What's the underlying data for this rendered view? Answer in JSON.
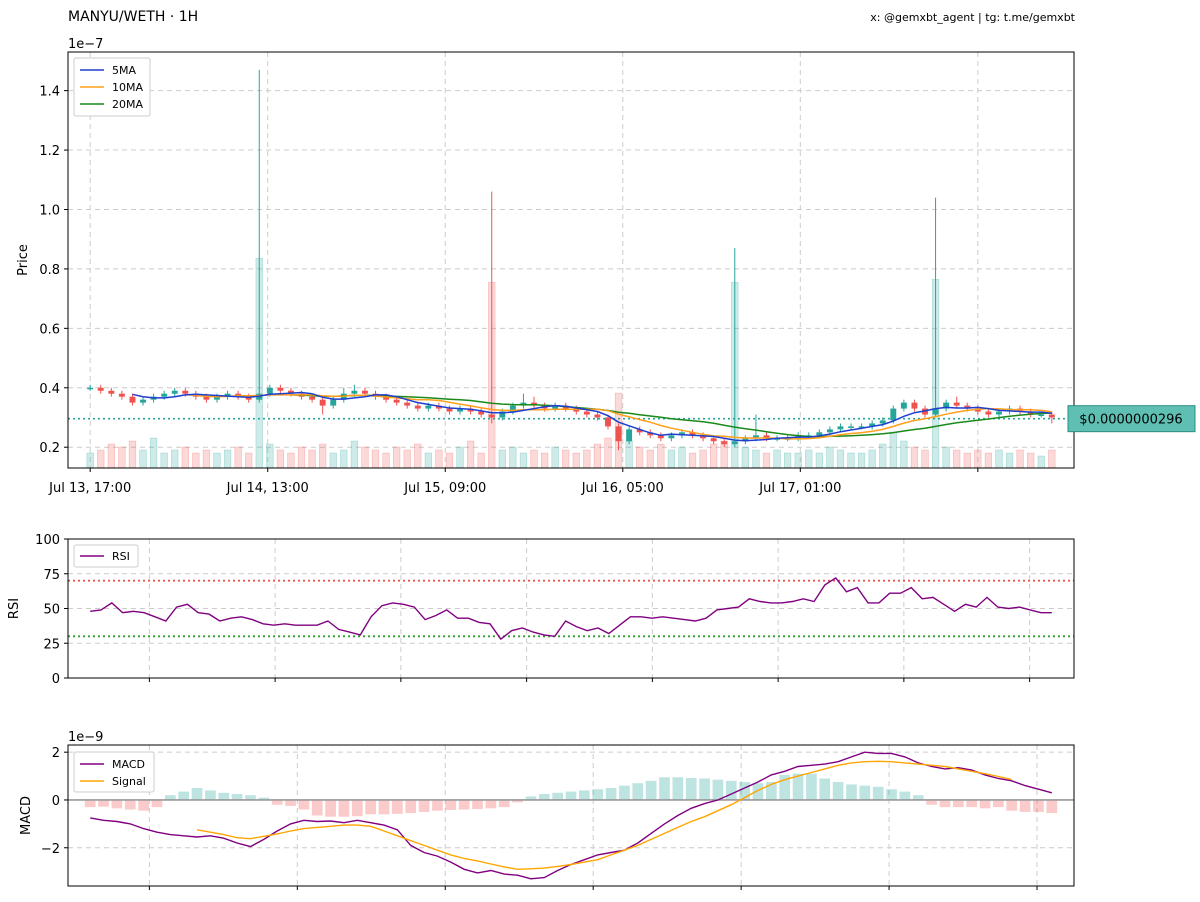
{
  "header": {
    "title": "MANYU/WETH · 1H",
    "credit": "x: @gemxbt_agent | tg: t.me/gemxbt"
  },
  "colors": {
    "up": "#26a69a",
    "down": "#ef5350",
    "ma5": "#1f3fd1",
    "ma10": "#ff9f1a",
    "ma20": "#1a8a1a",
    "rsi": "#800080",
    "overbought": "#ef5350",
    "oversold": "#2ca02c",
    "macd": "#800080",
    "signal": "#ffa500",
    "price_line": "#26a69a"
  },
  "chart_data": [
    {
      "type": "candlestick",
      "panel": "price",
      "ylabel": "Price",
      "y_exponent_label": "1e−7",
      "y_scale": 1e-07,
      "ylim": [
        0.13,
        1.53
      ],
      "yticks": [
        0.2,
        0.4,
        0.6,
        0.8,
        1.0,
        1.2,
        1.4
      ],
      "ytick_labels": [
        "0.2",
        "0.4",
        "0.6",
        "0.8",
        "1.0",
        "1.2",
        "1.4"
      ],
      "xlim": [
        -3,
        133
      ],
      "xticks": [
        0,
        24,
        48,
        72,
        96,
        120
      ],
      "xtick_labels": [
        "Jul 13, 17:00",
        "Jul 14, 13:00",
        "Jul 15, 09:00",
        "Jul 16, 05:00",
        "Jul 17, 01:00",
        ""
      ],
      "grid": true,
      "legend_position": "top-left",
      "legend": [
        "5MA",
        "10MA",
        "20MA"
      ],
      "current_price": 0.296,
      "current_price_label": "$0.0000000296",
      "ohlc": [
        [
          0.4,
          0.41,
          0.39,
          0.4
        ],
        [
          0.4,
          0.41,
          0.38,
          0.39
        ],
        [
          0.39,
          0.4,
          0.37,
          0.38
        ],
        [
          0.38,
          0.39,
          0.36,
          0.37
        ],
        [
          0.37,
          0.38,
          0.34,
          0.35
        ],
        [
          0.35,
          0.37,
          0.34,
          0.36
        ],
        [
          0.36,
          0.38,
          0.35,
          0.37
        ],
        [
          0.37,
          0.39,
          0.36,
          0.38
        ],
        [
          0.38,
          0.4,
          0.37,
          0.39
        ],
        [
          0.39,
          0.4,
          0.37,
          0.38
        ],
        [
          0.38,
          0.39,
          0.36,
          0.37
        ],
        [
          0.37,
          0.38,
          0.35,
          0.36
        ],
        [
          0.36,
          0.38,
          0.35,
          0.37
        ],
        [
          0.37,
          0.39,
          0.36,
          0.38
        ],
        [
          0.38,
          0.39,
          0.36,
          0.37
        ],
        [
          0.37,
          0.38,
          0.35,
          0.36
        ],
        [
          0.36,
          1.47,
          0.35,
          0.38
        ],
        [
          0.38,
          0.41,
          0.37,
          0.4
        ],
        [
          0.4,
          0.41,
          0.38,
          0.39
        ],
        [
          0.39,
          0.4,
          0.37,
          0.38
        ],
        [
          0.38,
          0.39,
          0.36,
          0.37
        ],
        [
          0.37,
          0.38,
          0.35,
          0.36
        ],
        [
          0.36,
          0.37,
          0.31,
          0.34
        ],
        [
          0.34,
          0.37,
          0.33,
          0.36
        ],
        [
          0.36,
          0.4,
          0.35,
          0.38
        ],
        [
          0.38,
          0.41,
          0.37,
          0.39
        ],
        [
          0.39,
          0.4,
          0.37,
          0.38
        ],
        [
          0.38,
          0.39,
          0.36,
          0.37
        ],
        [
          0.37,
          0.38,
          0.35,
          0.36
        ],
        [
          0.36,
          0.37,
          0.34,
          0.35
        ],
        [
          0.35,
          0.36,
          0.33,
          0.34
        ],
        [
          0.34,
          0.35,
          0.32,
          0.33
        ],
        [
          0.33,
          0.35,
          0.32,
          0.34
        ],
        [
          0.34,
          0.35,
          0.32,
          0.33
        ],
        [
          0.33,
          0.34,
          0.31,
          0.32
        ],
        [
          0.32,
          0.34,
          0.31,
          0.33
        ],
        [
          0.33,
          0.34,
          0.31,
          0.32
        ],
        [
          0.32,
          0.33,
          0.3,
          0.31
        ],
        [
          0.31,
          1.06,
          0.28,
          0.3
        ],
        [
          0.3,
          0.33,
          0.29,
          0.32
        ],
        [
          0.32,
          0.35,
          0.31,
          0.34
        ],
        [
          0.34,
          0.38,
          0.33,
          0.35
        ],
        [
          0.35,
          0.37,
          0.33,
          0.34
        ],
        [
          0.34,
          0.35,
          0.32,
          0.33
        ],
        [
          0.33,
          0.35,
          0.32,
          0.34
        ],
        [
          0.34,
          0.35,
          0.32,
          0.33
        ],
        [
          0.33,
          0.34,
          0.31,
          0.32
        ],
        [
          0.32,
          0.33,
          0.3,
          0.31
        ],
        [
          0.31,
          0.32,
          0.29,
          0.3
        ],
        [
          0.3,
          0.31,
          0.26,
          0.27
        ],
        [
          0.27,
          0.28,
          0.19,
          0.22
        ],
        [
          0.22,
          0.27,
          0.21,
          0.26
        ],
        [
          0.26,
          0.27,
          0.24,
          0.25
        ],
        [
          0.25,
          0.26,
          0.23,
          0.24
        ],
        [
          0.24,
          0.25,
          0.22,
          0.23
        ],
        [
          0.23,
          0.25,
          0.22,
          0.24
        ],
        [
          0.24,
          0.26,
          0.23,
          0.25
        ],
        [
          0.25,
          0.26,
          0.23,
          0.24
        ],
        [
          0.24,
          0.25,
          0.22,
          0.23
        ],
        [
          0.23,
          0.24,
          0.21,
          0.22
        ],
        [
          0.22,
          0.23,
          0.2,
          0.21
        ],
        [
          0.21,
          0.87,
          0.2,
          0.22
        ],
        [
          0.22,
          0.24,
          0.21,
          0.23
        ],
        [
          0.23,
          0.31,
          0.22,
          0.24
        ],
        [
          0.24,
          0.25,
          0.22,
          0.23
        ],
        [
          0.23,
          0.24,
          0.22,
          0.23
        ],
        [
          0.23,
          0.24,
          0.22,
          0.23
        ],
        [
          0.23,
          0.25,
          0.22,
          0.24
        ],
        [
          0.24,
          0.25,
          0.23,
          0.24
        ],
        [
          0.24,
          0.26,
          0.23,
          0.25
        ],
        [
          0.25,
          0.27,
          0.24,
          0.26
        ],
        [
          0.26,
          0.28,
          0.25,
          0.27
        ],
        [
          0.27,
          0.28,
          0.26,
          0.27
        ],
        [
          0.27,
          0.28,
          0.26,
          0.27
        ],
        [
          0.27,
          0.29,
          0.26,
          0.28
        ],
        [
          0.28,
          0.3,
          0.27,
          0.29
        ],
        [
          0.29,
          0.34,
          0.28,
          0.33
        ],
        [
          0.33,
          0.36,
          0.32,
          0.35
        ],
        [
          0.35,
          0.36,
          0.32,
          0.33
        ],
        [
          0.33,
          0.34,
          0.3,
          0.31
        ],
        [
          0.31,
          1.04,
          0.3,
          0.33
        ],
        [
          0.33,
          0.36,
          0.32,
          0.35
        ],
        [
          0.35,
          0.37,
          0.33,
          0.34
        ],
        [
          0.34,
          0.35,
          0.32,
          0.33
        ],
        [
          0.33,
          0.34,
          0.31,
          0.32
        ],
        [
          0.32,
          0.33,
          0.3,
          0.31
        ],
        [
          0.31,
          0.33,
          0.3,
          0.32
        ],
        [
          0.32,
          0.34,
          0.31,
          0.33
        ],
        [
          0.33,
          0.34,
          0.31,
          0.32
        ],
        [
          0.32,
          0.33,
          0.3,
          0.31
        ],
        [
          0.31,
          0.32,
          0.3,
          0.31
        ],
        [
          0.31,
          0.32,
          0.28,
          0.3
        ]
      ],
      "xpos_note": "candles are placed at x positions 0..130 (hourly)",
      "volume_ratio": [
        0.05,
        0.06,
        0.08,
        0.07,
        0.09,
        0.06,
        0.1,
        0.05,
        0.06,
        0.07,
        0.05,
        0.06,
        0.05,
        0.06,
        0.07,
        0.05,
        0.7,
        0.08,
        0.06,
        0.05,
        0.07,
        0.06,
        0.08,
        0.05,
        0.06,
        0.09,
        0.07,
        0.06,
        0.05,
        0.07,
        0.06,
        0.08,
        0.05,
        0.06,
        0.05,
        0.07,
        0.09,
        0.05,
        0.62,
        0.06,
        0.07,
        0.05,
        0.06,
        0.05,
        0.07,
        0.06,
        0.05,
        0.06,
        0.08,
        0.1,
        0.25,
        0.09,
        0.07,
        0.06,
        0.08,
        0.06,
        0.07,
        0.05,
        0.06,
        0.08,
        0.09,
        0.62,
        0.07,
        0.06,
        0.05,
        0.06,
        0.05,
        0.05,
        0.06,
        0.05,
        0.07,
        0.06,
        0.05,
        0.05,
        0.06,
        0.08,
        0.12,
        0.09,
        0.07,
        0.06,
        0.63,
        0.07,
        0.06,
        0.05,
        0.06,
        0.05,
        0.06,
        0.05,
        0.06,
        0.05,
        0.04,
        0.06
      ]
    },
    {
      "type": "line",
      "panel": "rsi",
      "ylabel": "RSI",
      "ylim": [
        0,
        100
      ],
      "yticks": [
        0,
        25,
        50,
        75,
        100
      ],
      "ytick_labels": [
        "0",
        "25",
        "50",
        "75",
        "100"
      ],
      "legend_position": "top-left",
      "overbought": 70,
      "oversold": 30,
      "series": [
        {
          "name": "RSI",
          "values": [
            48,
            49,
            54,
            47,
            48,
            47,
            44,
            41,
            51,
            53,
            47,
            46,
            41,
            43,
            44,
            42,
            39,
            38,
            39,
            38,
            38,
            38,
            41,
            35,
            33,
            31,
            44,
            52,
            54,
            53,
            51,
            42,
            45,
            49,
            43,
            43,
            40,
            39,
            28,
            34,
            36,
            33,
            31,
            30,
            41,
            37,
            34,
            36,
            32,
            38,
            44,
            44,
            43,
            44,
            43,
            42,
            41,
            43,
            49,
            50,
            51,
            57,
            55,
            54,
            54,
            55,
            57,
            55,
            67,
            72,
            62,
            65,
            54,
            54,
            61,
            61,
            65,
            57,
            58,
            53,
            48,
            53,
            51,
            58,
            51,
            50,
            51,
            49,
            47,
            47
          ]
        }
      ]
    },
    {
      "type": "line",
      "panel": "macd",
      "ylabel": "MACD",
      "y_exponent_label": "1e−9",
      "ylim": [
        -3.6,
        2.3
      ],
      "yticks": [
        -2,
        0,
        2
      ],
      "ytick_labels": [
        "−2",
        "0",
        "2"
      ],
      "legend_position": "top-left",
      "series": [
        {
          "name": "MACD",
          "values": [
            -0.75,
            -0.85,
            -0.9,
            -1.0,
            -1.2,
            -1.35,
            -1.45,
            -1.5,
            -1.55,
            -1.5,
            -1.6,
            -1.8,
            -1.95,
            -1.65,
            -1.3,
            -1.0,
            -0.85,
            -0.9,
            -0.88,
            -0.95,
            -0.85,
            -0.95,
            -1.05,
            -1.25,
            -1.9,
            -2.2,
            -2.35,
            -2.6,
            -2.9,
            -3.05,
            -2.95,
            -3.1,
            -3.15,
            -3.3,
            -3.25,
            -2.95,
            -2.7,
            -2.5,
            -2.3,
            -2.2,
            -2.1,
            -1.8,
            -1.4,
            -1.0,
            -0.65,
            -0.35,
            -0.15,
            0.0,
            0.25,
            0.5,
            0.75,
            1.05,
            1.2,
            1.4,
            1.45,
            1.5,
            1.6,
            1.8,
            2.0,
            1.95,
            1.95,
            1.8,
            1.55,
            1.4,
            1.3,
            1.35,
            1.25,
            1.05,
            0.9,
            0.8,
            0.6,
            0.45,
            0.3
          ]
        },
        {
          "name": "Signal",
          "start_index": 8,
          "values": [
            -1.25,
            -1.35,
            -1.45,
            -1.58,
            -1.62,
            -1.52,
            -1.42,
            -1.3,
            -1.2,
            -1.15,
            -1.1,
            -1.05,
            -1.05,
            -1.1,
            -1.3,
            -1.5,
            -1.7,
            -1.9,
            -2.1,
            -2.3,
            -2.45,
            -2.55,
            -2.68,
            -2.8,
            -2.9,
            -2.88,
            -2.85,
            -2.78,
            -2.7,
            -2.6,
            -2.5,
            -2.3,
            -2.1,
            -1.9,
            -1.65,
            -1.4,
            -1.15,
            -0.9,
            -0.7,
            -0.45,
            -0.2,
            0.1,
            0.4,
            0.65,
            0.85,
            1.0,
            1.15,
            1.3,
            1.45,
            1.55,
            1.6,
            1.62,
            1.6,
            1.55,
            1.5,
            1.45,
            1.4,
            1.3,
            1.2,
            1.1,
            0.98,
            0.86
          ]
        }
      ],
      "histogram": [
        -0.3,
        -0.28,
        -0.35,
        -0.4,
        -0.45,
        -0.3,
        0.2,
        0.35,
        0.5,
        0.4,
        0.3,
        0.25,
        0.2,
        0.1,
        -0.2,
        -0.25,
        -0.4,
        -0.65,
        -0.7,
        -0.7,
        -0.68,
        -0.6,
        -0.6,
        -0.58,
        -0.55,
        -0.5,
        -0.45,
        -0.42,
        -0.4,
        -0.38,
        -0.35,
        -0.3,
        -0.1,
        0.15,
        0.25,
        0.3,
        0.35,
        0.4,
        0.45,
        0.5,
        0.6,
        0.7,
        0.8,
        0.95,
        0.95,
        0.92,
        0.9,
        0.85,
        0.8,
        0.75,
        0.7,
        0.75,
        1.05,
        1.1,
        1.1,
        0.9,
        0.75,
        0.65,
        0.6,
        0.55,
        0.45,
        0.35,
        0.2,
        -0.2,
        -0.3,
        -0.3,
        -0.3,
        -0.35,
        -0.3,
        -0.45,
        -0.5,
        -0.5,
        -0.55
      ]
    }
  ]
}
